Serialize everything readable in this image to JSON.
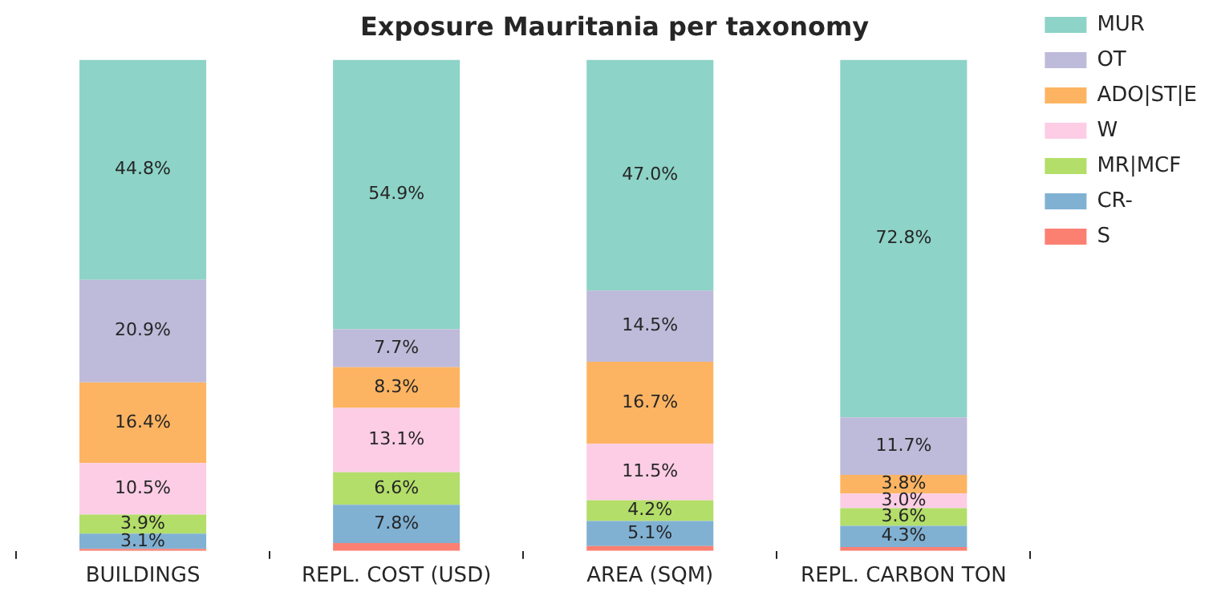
{
  "chart_data": {
    "type": "bar",
    "stacked": true,
    "title": "Exposure Mauritania per taxonomy",
    "categories": [
      "BUILDINGS",
      "REPL. COST (USD)",
      "AREA (SQM)",
      "REPL. CARBON TON"
    ],
    "ylim": [
      0,
      100
    ],
    "tick_labels": "x",
    "grid": false,
    "legend": "top right",
    "series": [
      {
        "name": "S",
        "color": "#fb8072",
        "values": [
          0.4,
          1.6,
          1.0,
          0.8
        ],
        "value_labels": [
          null,
          null,
          null,
          null
        ]
      },
      {
        "name": "CR-",
        "color": "#80b1d3",
        "values": [
          3.1,
          7.8,
          5.1,
          4.3
        ],
        "value_labels": [
          "3.1%",
          "7.8%",
          "5.1%",
          "4.3%"
        ]
      },
      {
        "name": "MR|MCF",
        "color": "#b3de69",
        "values": [
          3.9,
          6.6,
          4.2,
          3.6
        ],
        "value_labels": [
          "3.9%",
          "6.6%",
          "4.2%",
          "3.6%"
        ]
      },
      {
        "name": "W",
        "color": "#fccde5",
        "values": [
          10.5,
          13.1,
          11.5,
          3.0
        ],
        "value_labels": [
          "10.5%",
          "13.1%",
          "11.5%",
          "3.0%"
        ]
      },
      {
        "name": "ADO|ST|E",
        "color": "#fdb462",
        "values": [
          16.4,
          8.3,
          16.7,
          3.8
        ],
        "value_labels": [
          "16.4%",
          "8.3%",
          "16.7%",
          "3.8%"
        ]
      },
      {
        "name": "OT",
        "color": "#bebada",
        "values": [
          20.9,
          7.7,
          14.5,
          11.7
        ],
        "value_labels": [
          "20.9%",
          "7.7%",
          "14.5%",
          "11.7%"
        ]
      },
      {
        "name": "MUR",
        "color": "#8dd3c7",
        "values": [
          44.8,
          54.9,
          47.0,
          72.8
        ],
        "value_labels": [
          "44.8%",
          "54.9%",
          "47.0%",
          "72.8%"
        ]
      }
    ]
  }
}
